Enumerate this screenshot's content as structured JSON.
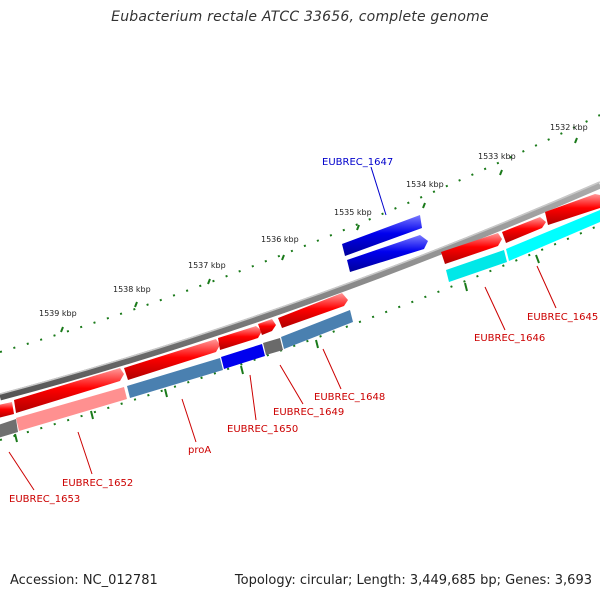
{
  "title": "Eubacterium rectale ATCC 33656, complete genome",
  "footer": {
    "accession": "Accession: NC_012781",
    "summary": "Topology: circular; Length: 3,449,685 bp; Genes: 3,693"
  },
  "ticks": [
    "1532 kbp",
    "1533 kbp",
    "1534 kbp",
    "1535 kbp",
    "1536 kbp",
    "1537 kbp",
    "1538 kbp",
    "1539 kbp"
  ],
  "genes": [
    "EUBREC_1647",
    "EUBREC_1645",
    "EUBREC_1646",
    "EUBREC_1648",
    "EUBREC_1649",
    "EUBREC_1650",
    "proA",
    "EUBREC_1652",
    "EUBREC_1653"
  ],
  "colors": {
    "forward_strand": "#ff0000",
    "reverse_strand_label": "#cc0000",
    "highlight_gene": "#0000ee",
    "cds_steelblue": "#4a80b0",
    "cds_cyan": "#00ffff",
    "cds_pink": "#ff9090",
    "backbone": "#808080",
    "tick_marks": "#1a7a1a"
  }
}
